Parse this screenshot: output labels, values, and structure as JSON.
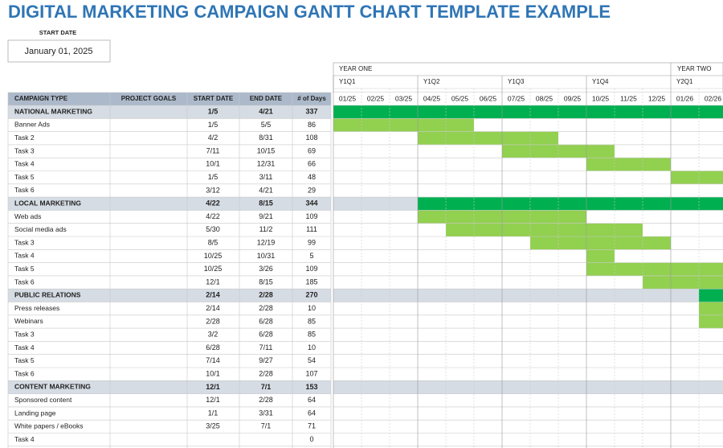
{
  "header": {
    "title": "DIGITAL MARKETING CAMPAIGN GANTT CHART TEMPLATE EXAMPLE"
  },
  "start_date": {
    "label": "START DATE",
    "value": "January 01, 2025"
  },
  "gantt": {
    "years": [
      "YEAR ONE",
      "YEAR TWO"
    ],
    "quarters": [
      "Y1Q1",
      "Y1Q2",
      "Y1Q3",
      "Y1Q4",
      "Y2Q1"
    ],
    "months": [
      "01/25",
      "02/25",
      "03/25",
      "04/25",
      "05/25",
      "06/25",
      "07/25",
      "08/25",
      "09/25",
      "10/25",
      "11/25",
      "12/25",
      "01/26",
      "02/26"
    ]
  },
  "table": {
    "columns": [
      "CAMPAIGN TYPE",
      "PROJECT GOALS",
      "START DATE",
      "END DATE",
      "# of Days"
    ],
    "sections": [
      {
        "row": {
          "name": "NATIONAL MARKETING",
          "start": "1/5",
          "end": "4/21",
          "days": 337
        },
        "tasks": [
          {
            "name": "Banner Ads",
            "start": "1/5",
            "end": "5/5",
            "days": 86
          },
          {
            "name": "Task 2",
            "start": "4/2",
            "end": "8/31",
            "days": 108
          },
          {
            "name": "Task 3",
            "start": "7/11",
            "end": "10/15",
            "days": 69
          },
          {
            "name": "Task 4",
            "start": "10/1",
            "end": "12/31",
            "days": 66
          },
          {
            "name": "Task 5",
            "start": "1/5",
            "end": "3/11",
            "days": 48
          },
          {
            "name": "Task 6",
            "start": "3/12",
            "end": "4/21",
            "days": 29
          }
        ]
      },
      {
        "row": {
          "name": "LOCAL MARKETING",
          "start": "4/22",
          "end": "8/15",
          "days": 344
        },
        "tasks": [
          {
            "name": "Web ads",
            "start": "4/22",
            "end": "9/21",
            "days": 109
          },
          {
            "name": "Social media ads",
            "start": "5/30",
            "end": "11/2",
            "days": 111
          },
          {
            "name": "Task 3",
            "start": "8/5",
            "end": "12/19",
            "days": 99
          },
          {
            "name": "Task 4",
            "start": "10/25",
            "end": "10/31",
            "days": 5
          },
          {
            "name": "Task 5",
            "start": "10/25",
            "end": "3/26",
            "days": 109
          },
          {
            "name": "Task 6",
            "start": "12/1",
            "end": "8/15",
            "days": 185
          }
        ]
      },
      {
        "row": {
          "name": "PUBLIC RELATIONS",
          "start": "2/14",
          "end": "2/28",
          "days": 270
        },
        "tasks": [
          {
            "name": "Press releases",
            "start": "2/14",
            "end": "2/28",
            "days": 10
          },
          {
            "name": "Webinars",
            "start": "2/28",
            "end": "6/28",
            "days": 85
          },
          {
            "name": "Task 3",
            "start": "3/2",
            "end": "6/28",
            "days": 85
          },
          {
            "name": "Task 4",
            "start": "6/28",
            "end": "7/11",
            "days": 10
          },
          {
            "name": "Task 5",
            "start": "7/14",
            "end": "9/27",
            "days": 54
          },
          {
            "name": "Task 6",
            "start": "10/1",
            "end": "2/28",
            "days": 107
          }
        ]
      },
      {
        "row": {
          "name": "CONTENT MARKETING",
          "start": "12/1",
          "end": "7/1",
          "days": 153
        },
        "tasks": [
          {
            "name": "Sponsored content",
            "start": "12/1",
            "end": "2/28",
            "days": 64
          },
          {
            "name": "Landing page",
            "start": "1/1",
            "end": "3/31",
            "days": 64
          },
          {
            "name": "White papers / eBooks",
            "start": "3/25",
            "end": "7/1",
            "days": 71
          },
          {
            "name": "Task 4",
            "days": 0
          }
        ]
      }
    ]
  }
}
